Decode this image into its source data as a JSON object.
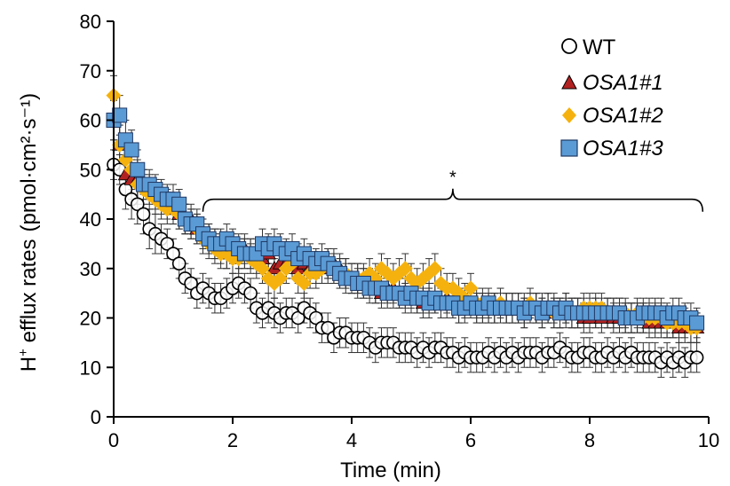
{
  "chart_data": {
    "type": "scatter",
    "title": "",
    "xlabel": "Time (min)",
    "ylabel_main": "H",
    "ylabel_sup": "+",
    "ylabel_rest": " efflux rates",
    "ylabel_unit": "(pmol·cm²·s⁻¹)",
    "xlim": [
      0,
      10
    ],
    "ylim": [
      0,
      80
    ],
    "xticks": [
      "0",
      "2",
      "4",
      "6",
      "8",
      "10"
    ],
    "yticks": [
      "0",
      "10",
      "20",
      "30",
      "40",
      "50",
      "60",
      "70",
      "80"
    ],
    "grid": false,
    "legend_position": "top-right",
    "annotation": {
      "text": "*",
      "x_start": 1.5,
      "x_end": 9.9,
      "y": 44,
      "x_peak": 5.7
    },
    "x": [
      0.0,
      0.1,
      0.2,
      0.3,
      0.4,
      0.5,
      0.6,
      0.7,
      0.8,
      0.9,
      1.0,
      1.1,
      1.2,
      1.3,
      1.4,
      1.5,
      1.6,
      1.7,
      1.8,
      1.9,
      2.0,
      2.1,
      2.2,
      2.3,
      2.4,
      2.5,
      2.6,
      2.7,
      2.8,
      2.9,
      3.0,
      3.1,
      3.2,
      3.3,
      3.4,
      3.5,
      3.6,
      3.7,
      3.8,
      3.9,
      4.0,
      4.1,
      4.2,
      4.3,
      4.4,
      4.5,
      4.6,
      4.7,
      4.8,
      4.9,
      5.0,
      5.1,
      5.2,
      5.3,
      5.4,
      5.5,
      5.6,
      5.7,
      5.8,
      5.9,
      6.0,
      6.1,
      6.2,
      6.3,
      6.4,
      6.5,
      6.6,
      6.7,
      6.8,
      6.9,
      7.0,
      7.1,
      7.2,
      7.3,
      7.4,
      7.5,
      7.6,
      7.7,
      7.8,
      7.9,
      8.0,
      8.1,
      8.2,
      8.3,
      8.4,
      8.5,
      8.6,
      8.7,
      8.8,
      8.9,
      9.0,
      9.1,
      9.2,
      9.3,
      9.4,
      9.5,
      9.6,
      9.7,
      9.8
    ],
    "series": [
      {
        "name": "WT",
        "marker": "circle",
        "fill": "#ffffff",
        "stroke": "#000000",
        "values": [
          51,
          50,
          46,
          44,
          43,
          41,
          38,
          37,
          36,
          35,
          33,
          31,
          28,
          27,
          25,
          26,
          25,
          24,
          24,
          25,
          26,
          27,
          26,
          25,
          22,
          21,
          22,
          21,
          20,
          21,
          21,
          20,
          22,
          21,
          20,
          18,
          18,
          16,
          17,
          17,
          16,
          16,
          16,
          15,
          14,
          15,
          15,
          15,
          14,
          14,
          14,
          13,
          14,
          13,
          14,
          14,
          13,
          13,
          12,
          13,
          12,
          12,
          12,
          13,
          12,
          13,
          12,
          13,
          12,
          13,
          13,
          13,
          12,
          13,
          13,
          14,
          13,
          12,
          12,
          13,
          13,
          12,
          12,
          13,
          12,
          13,
          12,
          13,
          12,
          12,
          12,
          12,
          11,
          12,
          11,
          12,
          11,
          12,
          12
        ],
        "errors": [
          3,
          3,
          4,
          4,
          4,
          4,
          4,
          4,
          3,
          3,
          3,
          3,
          3,
          3,
          3,
          3,
          3,
          3,
          3,
          3,
          3,
          3,
          3,
          3,
          3,
          3,
          3,
          3,
          3,
          3,
          3,
          3,
          3,
          3,
          3,
          3,
          3,
          3,
          3,
          3,
          3,
          3,
          3,
          3,
          3,
          3,
          3,
          3,
          3,
          3,
          3,
          3,
          3,
          3,
          3,
          3,
          3,
          3,
          3,
          3,
          3,
          3,
          3,
          3,
          3,
          3,
          3,
          3,
          3,
          3,
          3,
          3,
          3,
          3,
          3,
          3,
          3,
          3,
          3,
          3,
          3,
          3,
          3,
          3,
          3,
          3,
          3,
          3,
          3,
          3,
          3,
          3,
          3,
          3,
          3,
          3,
          3,
          3,
          3
        ]
      },
      {
        "name": "OSA1#1",
        "marker": "triangle",
        "fill": "#b22222",
        "stroke": "#000000",
        "values": [
          60,
          55,
          49,
          48,
          48,
          47,
          46,
          45,
          44,
          43,
          42,
          41,
          40,
          40,
          38,
          37,
          36,
          35,
          34,
          33,
          34,
          33,
          34,
          33,
          32,
          32,
          33,
          30,
          31,
          31,
          32,
          30,
          31,
          30,
          30,
          30,
          30,
          31,
          30,
          29,
          28,
          28,
          27,
          27,
          26,
          25,
          26,
          26,
          25,
          25,
          24,
          24,
          23,
          24,
          24,
          23,
          24,
          23,
          22,
          23,
          23,
          22,
          22,
          22,
          22,
          23,
          22,
          22,
          22,
          21,
          22,
          22,
          21,
          22,
          21,
          21,
          22,
          21,
          21,
          20,
          20,
          21,
          20,
          21,
          20,
          20,
          20,
          20,
          20,
          20,
          19,
          19,
          19,
          19,
          19,
          18,
          18,
          18,
          18
        ],
        "errors": [
          4,
          4,
          4,
          4,
          4,
          3,
          3,
          3,
          3,
          3,
          3,
          3,
          3,
          3,
          3,
          3,
          3,
          3,
          3,
          3,
          3,
          3,
          3,
          3,
          3,
          3,
          3,
          3,
          3,
          3,
          3,
          3,
          3,
          3,
          3,
          3,
          3,
          3,
          3,
          3,
          3,
          3,
          3,
          3,
          3,
          3,
          3,
          3,
          3,
          3,
          3,
          3,
          3,
          3,
          3,
          3,
          3,
          3,
          3,
          3,
          3,
          3,
          3,
          3,
          3,
          3,
          3,
          3,
          3,
          3,
          3,
          3,
          3,
          3,
          3,
          3,
          3,
          3,
          3,
          3,
          3,
          3,
          3,
          3,
          3,
          3,
          3,
          3,
          3,
          3,
          3,
          3,
          3,
          3,
          3,
          3,
          3,
          3,
          3
        ]
      },
      {
        "name": "OSA1#2",
        "marker": "diamond",
        "fill": "#f5b20e",
        "stroke": "#f5b20e",
        "values": [
          65,
          55,
          52,
          50,
          47,
          46,
          45,
          44,
          43,
          42,
          42,
          41,
          40,
          39,
          38,
          36,
          35,
          34,
          33,
          33,
          32,
          32,
          33,
          32,
          31,
          30,
          28,
          27,
          28,
          30,
          31,
          28,
          27,
          29,
          29,
          30,
          31,
          30,
          29,
          29,
          28,
          28,
          28,
          29,
          28,
          30,
          29,
          28,
          29,
          30,
          28,
          27,
          28,
          29,
          30,
          27,
          26,
          26,
          25,
          24,
          26,
          23,
          23,
          22,
          22,
          23,
          22,
          22,
          22,
          22,
          23,
          22,
          22,
          22,
          21,
          21,
          21,
          21,
          21,
          22,
          22,
          22,
          22,
          21,
          21,
          21,
          21,
          20,
          21,
          20,
          20,
          20,
          20,
          19,
          19,
          19,
          19,
          18,
          18
        ],
        "errors": [
          4,
          4,
          4,
          4,
          4,
          3,
          3,
          3,
          3,
          3,
          3,
          3,
          3,
          3,
          3,
          3,
          3,
          3,
          3,
          3,
          3,
          3,
          3,
          3,
          3,
          3,
          3,
          3,
          3,
          3,
          3,
          3,
          3,
          3,
          3,
          3,
          3,
          3,
          3,
          3,
          3,
          3,
          3,
          3,
          3,
          3,
          3,
          3,
          3,
          3,
          3,
          3,
          3,
          3,
          3,
          3,
          3,
          3,
          3,
          3,
          3,
          3,
          3,
          3,
          3,
          3,
          3,
          3,
          3,
          3,
          3,
          3,
          3,
          3,
          3,
          3,
          3,
          3,
          3,
          3,
          3,
          3,
          3,
          3,
          3,
          3,
          3,
          3,
          3,
          3,
          3,
          3,
          3,
          3,
          3,
          3,
          3,
          3,
          3
        ]
      },
      {
        "name": "OSA1#3",
        "marker": "square",
        "fill": "#5b9bd5",
        "stroke": "#1f3864",
        "values": [
          60,
          61,
          56,
          54,
          50,
          47,
          47,
          46,
          45,
          44,
          44,
          43,
          40,
          39,
          39,
          37,
          36,
          35,
          35,
          36,
          35,
          34,
          33,
          33,
          33,
          35,
          34,
          35,
          34,
          33,
          34,
          32,
          33,
          32,
          31,
          32,
          31,
          30,
          29,
          28,
          28,
          27,
          27,
          26,
          26,
          26,
          25,
          25,
          25,
          24,
          25,
          24,
          24,
          23,
          24,
          23,
          23,
          23,
          22,
          22,
          23,
          22,
          22,
          23,
          22,
          22,
          22,
          22,
          22,
          21,
          22,
          22,
          21,
          22,
          22,
          21,
          22,
          21,
          21,
          21,
          21,
          21,
          21,
          21,
          21,
          21,
          20,
          20,
          20,
          21,
          21,
          21,
          21,
          20,
          21,
          21,
          20,
          20,
          19
        ],
        "errors": [
          4,
          4,
          4,
          4,
          4,
          3,
          3,
          3,
          3,
          3,
          3,
          3,
          3,
          3,
          3,
          3,
          3,
          3,
          3,
          3,
          3,
          3,
          3,
          3,
          3,
          3,
          3,
          3,
          3,
          3,
          3,
          3,
          3,
          3,
          3,
          3,
          3,
          3,
          3,
          3,
          3,
          3,
          3,
          3,
          3,
          3,
          3,
          3,
          3,
          3,
          3,
          3,
          3,
          3,
          3,
          3,
          3,
          3,
          3,
          3,
          3,
          3,
          3,
          3,
          3,
          3,
          3,
          3,
          3,
          3,
          3,
          3,
          3,
          3,
          3,
          3,
          3,
          3,
          3,
          3,
          3,
          3,
          3,
          3,
          3,
          3,
          3,
          3,
          3,
          3,
          3,
          3,
          3,
          3,
          3,
          3,
          3,
          3,
          3
        ]
      }
    ]
  }
}
